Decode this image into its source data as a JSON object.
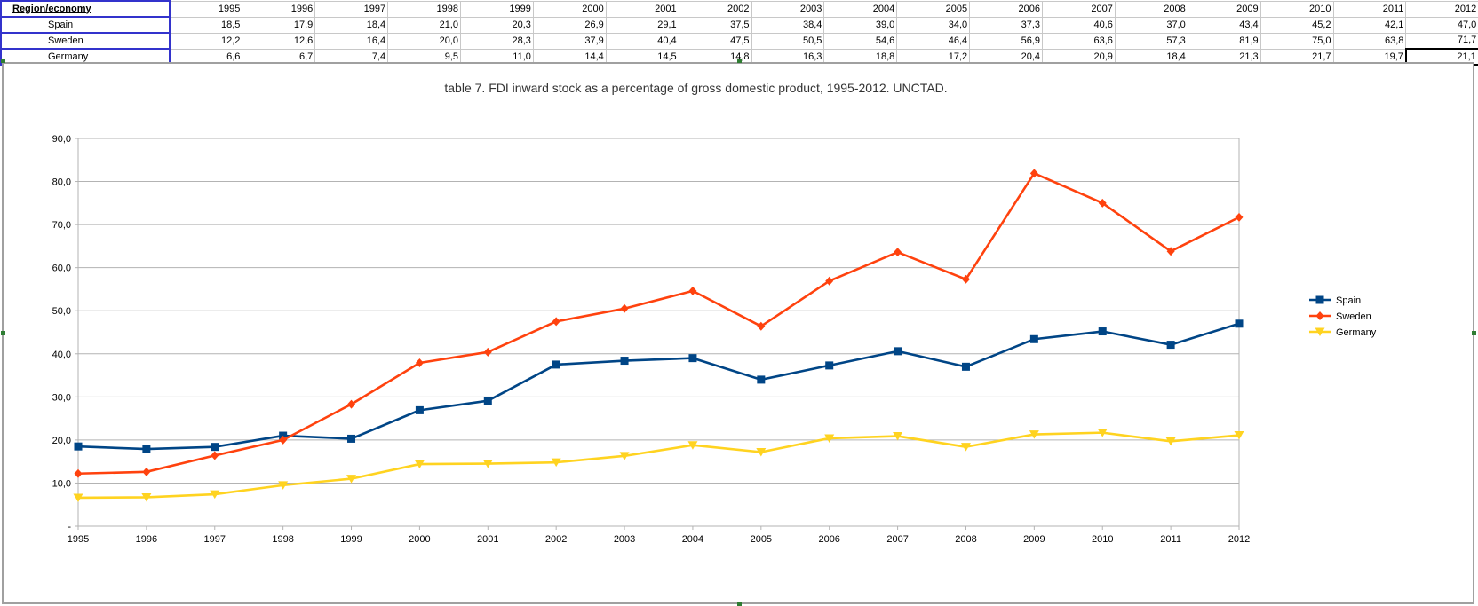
{
  "table": {
    "header_label": "Region/economy",
    "years": [
      "1995",
      "1996",
      "1997",
      "1998",
      "1999",
      "2000",
      "2001",
      "2002",
      "2003",
      "2004",
      "2005",
      "2006",
      "2007",
      "2008",
      "2009",
      "2010",
      "2011",
      "2012"
    ],
    "rows": [
      {
        "name": "Spain",
        "values": [
          "18,5",
          "17,9",
          "18,4",
          "21,0",
          "20,3",
          "26,9",
          "29,1",
          "37,5",
          "38,4",
          "39,0",
          "34,0",
          "37,3",
          "40,6",
          "37,0",
          "43,4",
          "45,2",
          "42,1",
          "47,0"
        ]
      },
      {
        "name": "Sweden",
        "values": [
          "12,2",
          "12,6",
          "16,4",
          "20,0",
          "28,3",
          "37,9",
          "40,4",
          "47,5",
          "50,5",
          "54,6",
          "46,4",
          "56,9",
          "63,6",
          "57,3",
          "81,9",
          "75,0",
          "63,8",
          "71,7"
        ]
      },
      {
        "name": "Germany",
        "values": [
          "6,6",
          "6,7",
          "7,4",
          "9,5",
          "11,0",
          "14,4",
          "14,5",
          "14,8",
          "16,3",
          "18,8",
          "17,2",
          "20,4",
          "20,9",
          "18,4",
          "21,3",
          "21,7",
          "19,7",
          "21,1"
        ]
      }
    ]
  },
  "chart_data": {
    "type": "line",
    "title": "table 7. FDI inward stock as a percentage of gross domestic product, 1995-2012. UNCTAD.",
    "categories": [
      "1995",
      "1996",
      "1997",
      "1998",
      "1999",
      "2000",
      "2001",
      "2002",
      "2003",
      "2004",
      "2005",
      "2006",
      "2007",
      "2008",
      "2009",
      "2010",
      "2011",
      "2012"
    ],
    "series": [
      {
        "name": "Spain",
        "color": "#004586",
        "marker": "square",
        "values": [
          18.5,
          17.9,
          18.4,
          21.0,
          20.3,
          26.9,
          29.1,
          37.5,
          38.4,
          39.0,
          34.0,
          37.3,
          40.6,
          37.0,
          43.4,
          45.2,
          42.1,
          47.0
        ]
      },
      {
        "name": "Sweden",
        "color": "#ff420e",
        "marker": "diamond",
        "values": [
          12.2,
          12.6,
          16.4,
          20.0,
          28.3,
          37.9,
          40.4,
          47.5,
          50.5,
          54.6,
          46.4,
          56.9,
          63.6,
          57.3,
          81.9,
          75.0,
          63.8,
          71.7
        ]
      },
      {
        "name": "Germany",
        "color": "#ffd320",
        "marker": "triangle-down",
        "values": [
          6.6,
          6.7,
          7.4,
          9.5,
          11.0,
          14.4,
          14.5,
          14.8,
          16.3,
          18.8,
          17.2,
          20.4,
          20.9,
          18.4,
          21.3,
          21.7,
          19.7,
          21.1
        ]
      }
    ],
    "ylim": [
      0,
      90
    ],
    "yticks": [
      "-",
      "10,0",
      "20,0",
      "30,0",
      "40,0",
      "50,0",
      "60,0",
      "70,0",
      "80,0",
      "90,0"
    ],
    "grid": true,
    "legend_position": "right"
  }
}
